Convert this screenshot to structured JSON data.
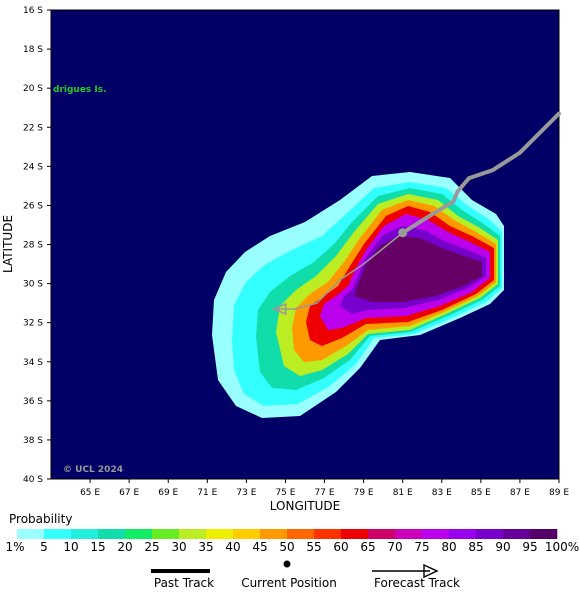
{
  "axes": {
    "x_title": "LONGITUDE",
    "y_title": "LATITUDE",
    "x_ticks": [
      "65 E",
      "67 E",
      "69 E",
      "71 E",
      "73 E",
      "75 E",
      "77 E",
      "79 E",
      "81 E",
      "83 E",
      "85 E",
      "87 E",
      "89 E"
    ],
    "y_ticks": [
      "16 S",
      "18 S",
      "20 S",
      "22 S",
      "24 S",
      "26 S",
      "28 S",
      "30 S",
      "32 S",
      "34 S",
      "36 S",
      "38 S",
      "40 S"
    ]
  },
  "map": {
    "place_label": "drigues Is.",
    "credit": "© UCL 2024",
    "background_color": "#000066",
    "track_color": "#999999",
    "place_label_color": "#22cc22"
  },
  "probability_scale": {
    "title": "Probability",
    "labels": [
      "1%",
      "5",
      "10",
      "15",
      "20",
      "25",
      "30",
      "35",
      "40",
      "45",
      "50",
      "55",
      "60",
      "65",
      "70",
      "75",
      "80",
      "85",
      "90",
      "95",
      "100%"
    ],
    "colors": [
      "#99ffff",
      "#33ffff",
      "#22eedd",
      "#11ddaa",
      "#11ee66",
      "#66ee22",
      "#bbee22",
      "#eeee00",
      "#ffcc00",
      "#ff9900",
      "#ff6600",
      "#ff3300",
      "#ee0000",
      "#cc0066",
      "#cc00bb",
      "#bb00ee",
      "#9900ee",
      "#7700cc",
      "#660099",
      "#550066"
    ]
  },
  "key": {
    "past_track": "Past Track",
    "current_position": "Current Position",
    "forecast_track": "Forecast Track"
  },
  "chart_data": {
    "type": "map",
    "xlim": [
      63,
      89
    ],
    "ylim": [
      16,
      40
    ],
    "past_track": [
      [
        89.0,
        21.3
      ],
      [
        88.0,
        22.3
      ],
      [
        87.0,
        23.3
      ],
      [
        85.6,
        24.2
      ],
      [
        84.4,
        24.6
      ],
      [
        83.8,
        25.3
      ],
      [
        83.6,
        25.8
      ],
      [
        82.6,
        26.4
      ],
      [
        81.0,
        27.4
      ]
    ],
    "current_position": [
      81.0,
      27.4
    ],
    "forecast_track": [
      [
        81.0,
        27.4
      ],
      [
        80.0,
        28.2
      ],
      [
        79.0,
        29.0
      ],
      [
        77.8,
        29.8
      ],
      [
        77.0,
        30.6
      ],
      [
        76.6,
        31.0
      ],
      [
        75.5,
        31.3
      ],
      [
        74.4,
        31.3
      ]
    ]
  }
}
